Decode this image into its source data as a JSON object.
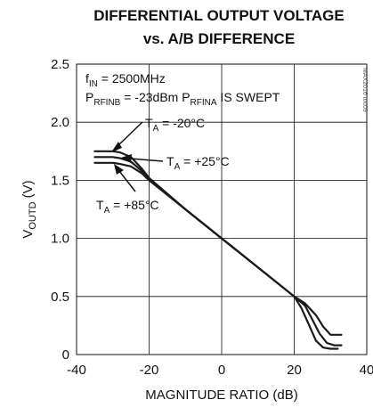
{
  "chart_data": {
    "type": "line",
    "title_line1": "DIFFERENTIAL OUTPUT VOLTAGE",
    "title_line2": "vs. A/B DIFFERENCE",
    "xlabel": "MAGNITUDE RATIO (dB)",
    "ylabel": {
      "main": "V",
      "sub": "OUTD",
      "suffix": " (V)"
    },
    "xlim": [
      -40,
      40
    ],
    "ylim": [
      0,
      2.5
    ],
    "xticks": [
      "-40",
      "-20",
      "0",
      "20",
      "40"
    ],
    "yticks": [
      "0",
      "0.5",
      "1.0",
      "1.5",
      "2.0",
      "2.5"
    ],
    "xtick_values": [
      -40,
      -20,
      0,
      20,
      40
    ],
    "ytick_values": [
      0,
      0.5,
      1.0,
      1.5,
      2.0,
      2.5
    ],
    "grid": true,
    "conditions": {
      "line1": {
        "a": "f",
        "a_sub": "IN",
        "b": " = 2500MHz"
      },
      "line2": {
        "a": "P",
        "a_sub": "RFINB",
        "b": " = -23dBm P",
        "b_sub": "RFINA",
        "c": " IS SWEPT"
      }
    },
    "watermark": "MAX2016 toc09",
    "series": [
      {
        "name": "T_A = -20°C",
        "label": {
          "a": "T",
          "a_sub": "A",
          "b": " = -20°C"
        },
        "color": "#1a1a1a",
        "x": [
          -35,
          -30,
          -28,
          -25,
          -22,
          -20,
          -10,
          0,
          10,
          20,
          23,
          26,
          28,
          30,
          32,
          33
        ],
        "y": [
          1.75,
          1.75,
          1.74,
          1.7,
          1.6,
          1.52,
          1.25,
          1.0,
          0.75,
          0.5,
          0.44,
          0.34,
          0.24,
          0.17,
          0.17,
          0.17
        ]
      },
      {
        "name": "T_A = +25°C",
        "label": {
          "a": "T",
          "a_sub": "A",
          "b": " = +25°C"
        },
        "color": "#1a1a1a",
        "x": [
          -35,
          -30,
          -28,
          -25,
          -22,
          -20,
          -10,
          0,
          10,
          20,
          23,
          25,
          27,
          29,
          31,
          33
        ],
        "y": [
          1.7,
          1.7,
          1.69,
          1.66,
          1.58,
          1.51,
          1.25,
          1.0,
          0.75,
          0.5,
          0.42,
          0.3,
          0.18,
          0.1,
          0.08,
          0.08
        ]
      },
      {
        "name": "T_A = +85°C",
        "label": {
          "a": "T",
          "a_sub": "A",
          "b": " = +85°C"
        },
        "color": "#1a1a1a",
        "x": [
          -35,
          -30,
          -28,
          -25,
          -22,
          -20,
          -10,
          0,
          10,
          20,
          22,
          24,
          26,
          28,
          30,
          32
        ],
        "y": [
          1.65,
          1.65,
          1.64,
          1.62,
          1.56,
          1.5,
          1.25,
          1.0,
          0.75,
          0.5,
          0.4,
          0.26,
          0.12,
          0.06,
          0.05,
          0.05
        ]
      }
    ]
  }
}
